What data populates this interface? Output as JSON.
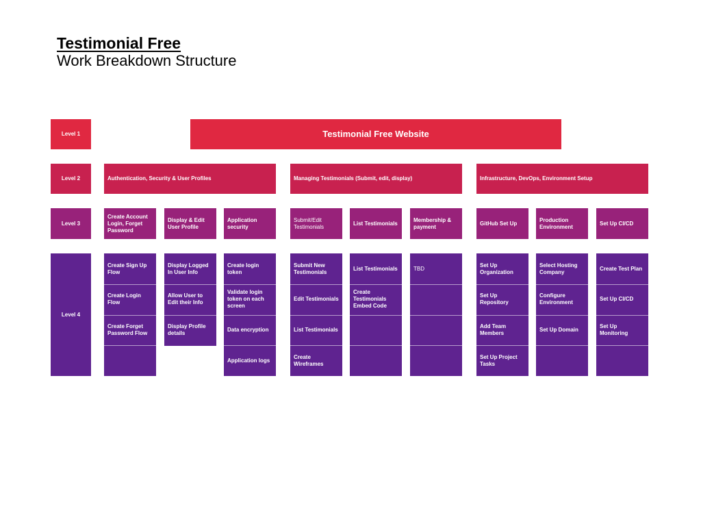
{
  "header": {
    "title": "Testimonial Free",
    "subtitle": "Work Breakdown Structure"
  },
  "levels": [
    "Level 1",
    "Level 2",
    "Level 3",
    "Level 4"
  ],
  "colors": {
    "level1": "#e02841",
    "level2": "#c8214f",
    "level3": "#98227a",
    "level4": "#5f2390"
  },
  "root": "Testimonial Free Website",
  "branches": [
    {
      "label": "Authentication, Security & User Profiles",
      "columns": [
        {
          "label": "Create Account Login, Forget Password",
          "items": [
            "Create Sign Up Flow",
            "Create Login Flow",
            "Create Forget Password Flow",
            ""
          ]
        },
        {
          "label": "Display & Edit User Profile",
          "items": [
            "Display Logged In User Info",
            "Allow User to Edit their Info",
            "Display Profile details"
          ]
        },
        {
          "label": "Application security",
          "items": [
            "Create login token",
            "Validate login token on each screen",
            "Data encryption",
            "Application logs"
          ]
        }
      ]
    },
    {
      "label": "Managing Testimonials (Submit, edit, display)",
      "columns": [
        {
          "label": "Submit/Edit Testimonials",
          "light": true,
          "items": [
            "Submit New Testimonials",
            "Edit Testimonials",
            "List Testimonials",
            "Create Wireframes"
          ]
        },
        {
          "label": "List Testimonials",
          "items": [
            "List Testimonials",
            "Create Testimonials Embed Code",
            "",
            ""
          ]
        },
        {
          "label": "Membership & payment",
          "items": [
            "TBD",
            "",
            "",
            ""
          ],
          "lightItems": true
        }
      ]
    },
    {
      "label": "Infrastructure, DevOps, Environment Setup",
      "columns": [
        {
          "label": "GitHub Set Up",
          "items": [
            "Set Up Organization",
            "Set Up Repository",
            "Add Team Members",
            "Set Up Project Tasks"
          ]
        },
        {
          "label": "Production Environment",
          "items": [
            "Select Hosting Company",
            "Configure Environment",
            "Set Up Domain",
            ""
          ]
        },
        {
          "label": "Set Up CI/CD",
          "items": [
            "Create Test Plan",
            "Set Up CI/CD",
            "Set Up Monitoring",
            ""
          ]
        }
      ]
    }
  ]
}
